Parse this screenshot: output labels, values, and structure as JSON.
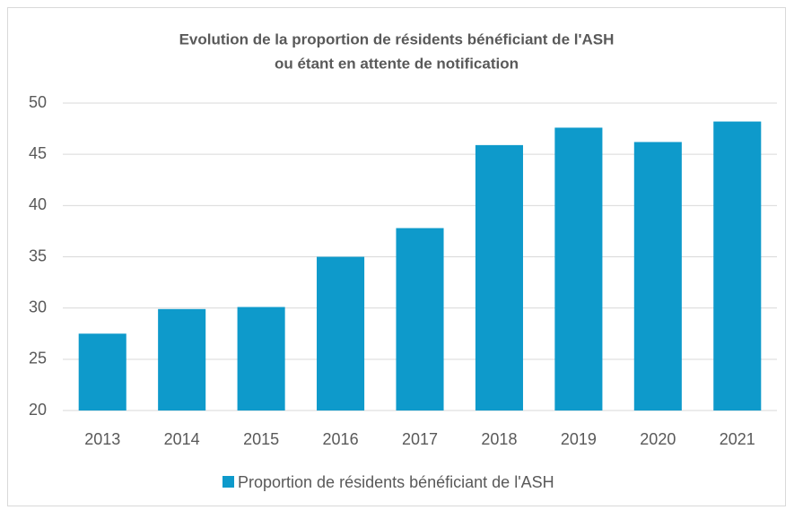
{
  "chart_data": {
    "type": "bar",
    "title": [
      "Evolution de la proportion de résidents bénéficiant de l'ASH",
      "ou étant en attente de notification"
    ],
    "categories": [
      "2013",
      "2014",
      "2015",
      "2016",
      "2017",
      "2018",
      "2019",
      "2020",
      "2021"
    ],
    "series": [
      {
        "name": "Proportion de résidents bénéficiant de l'ASH",
        "color": "#0e9acb",
        "values": [
          27.5,
          29.9,
          30.1,
          35.0,
          37.8,
          45.9,
          47.6,
          46.2,
          48.2
        ]
      }
    ],
    "ylim": [
      20,
      50
    ],
    "yticks": [
      20,
      25,
      30,
      35,
      40,
      45,
      50
    ],
    "grid": true,
    "legend": "bottom"
  }
}
